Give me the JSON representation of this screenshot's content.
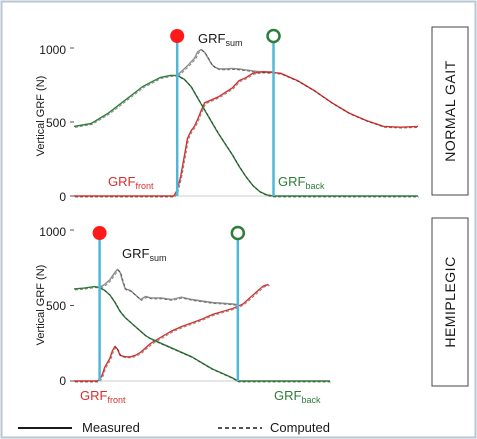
{
  "colors": {
    "sum": "#8c8c8c",
    "front": "#d9302c",
    "back": "#2e7d3a",
    "marker_line": "#4fb8d8",
    "filled_marker": "#ff1a1a",
    "open_marker": "#2e7d3a"
  },
  "legend": {
    "measured": "Measured",
    "computed": "Computed"
  },
  "chart_data": [
    {
      "type": "line",
      "label": "NORMAL GAIT",
      "ylabel": "Vertical GRF (N)",
      "ylim": [
        0,
        1000
      ],
      "yticks": [
        "1000",
        "500",
        "0"
      ],
      "ytick_values": [
        1000,
        500,
        0
      ],
      "xlim": [
        0,
        100
      ],
      "annotations": {
        "sum": {
          "base": "GRF",
          "sub": "sum"
        },
        "front": {
          "base": "GRF",
          "sub": "front"
        },
        "back": {
          "base": "GRF",
          "sub": "back"
        }
      },
      "markers": {
        "filled_x": 30,
        "open_x": 58
      },
      "series": [
        {
          "name": "sum",
          "x": [
            30,
            33,
            35,
            36,
            37,
            38,
            39,
            40,
            41,
            42,
            44,
            46,
            48,
            50,
            52,
            54,
            56,
            58
          ],
          "y": [
            815,
            880,
            930,
            975,
            990,
            970,
            930,
            890,
            870,
            860,
            858,
            862,
            858,
            852,
            845,
            840,
            838,
            840
          ]
        },
        {
          "name": "front",
          "x": [
            0,
            29,
            30,
            31,
            32,
            33,
            34,
            35,
            36,
            37,
            38,
            40,
            42,
            44,
            46,
            48,
            50,
            52,
            55,
            60,
            65,
            70,
            75,
            80,
            85,
            90,
            95,
            100
          ],
          "y": [
            0,
            0,
            40,
            130,
            260,
            390,
            440,
            470,
            520,
            580,
            630,
            650,
            670,
            700,
            730,
            780,
            800,
            830,
            840,
            830,
            780,
            710,
            630,
            560,
            510,
            470,
            465,
            470
          ]
        },
        {
          "name": "back",
          "x": [
            0,
            5,
            10,
            15,
            20,
            25,
            28,
            30,
            32,
            34,
            36,
            38,
            40,
            42,
            44,
            46,
            48,
            50,
            52,
            54,
            56,
            58,
            100
          ],
          "y": [
            470,
            490,
            560,
            650,
            740,
            800,
            815,
            815,
            790,
            740,
            660,
            580,
            500,
            420,
            350,
            280,
            200,
            130,
            70,
            30,
            8,
            0,
            0
          ]
        }
      ]
    },
    {
      "type": "line",
      "label": "HEMIPLEGIC",
      "ylabel": "Vertical GRF (N)",
      "ylim": [
        0,
        1000
      ],
      "yticks": [
        "1000",
        "500",
        "0"
      ],
      "ytick_values": [
        1000,
        500,
        0
      ],
      "xlim": [
        0,
        100
      ],
      "annotations": {
        "sum": {
          "base": "GRF",
          "sub": "sum"
        },
        "front": {
          "base": "GRF",
          "sub": "front"
        },
        "back": {
          "base": "GRF",
          "sub": "back"
        }
      },
      "markers": {
        "filled_x": 10,
        "open_x": 64
      },
      "series": [
        {
          "name": "sum",
          "x": [
            10,
            12,
            14,
            16,
            17,
            18,
            19,
            20,
            22,
            24,
            26,
            28,
            30,
            34,
            38,
            42,
            46,
            50,
            54,
            58,
            62,
            64
          ],
          "y": [
            620,
            640,
            670,
            720,
            740,
            720,
            660,
            610,
            600,
            570,
            540,
            560,
            550,
            550,
            540,
            555,
            540,
            530,
            520,
            515,
            510,
            505
          ]
        },
        {
          "name": "front",
          "x": [
            0,
            9,
            10,
            11,
            12,
            13,
            14,
            15,
            16,
            17,
            18,
            20,
            22,
            24,
            26,
            28,
            30,
            34,
            38,
            42,
            46,
            50,
            54,
            58,
            62,
            66,
            70,
            74,
            76
          ],
          "y": [
            0,
            0,
            10,
            40,
            90,
            120,
            150,
            200,
            230,
            210,
            170,
            160,
            160,
            170,
            190,
            220,
            250,
            290,
            330,
            360,
            385,
            410,
            440,
            460,
            480,
            510,
            570,
            630,
            640
          ]
        },
        {
          "name": "back",
          "x": [
            0,
            4,
            8,
            10,
            12,
            14,
            16,
            18,
            20,
            22,
            24,
            26,
            28,
            30,
            34,
            38,
            42,
            46,
            50,
            54,
            58,
            62,
            64,
            100
          ],
          "y": [
            610,
            615,
            625,
            620,
            600,
            570,
            520,
            460,
            420,
            390,
            360,
            330,
            300,
            280,
            250,
            220,
            190,
            160,
            120,
            80,
            50,
            20,
            0,
            0
          ]
        }
      ]
    }
  ]
}
